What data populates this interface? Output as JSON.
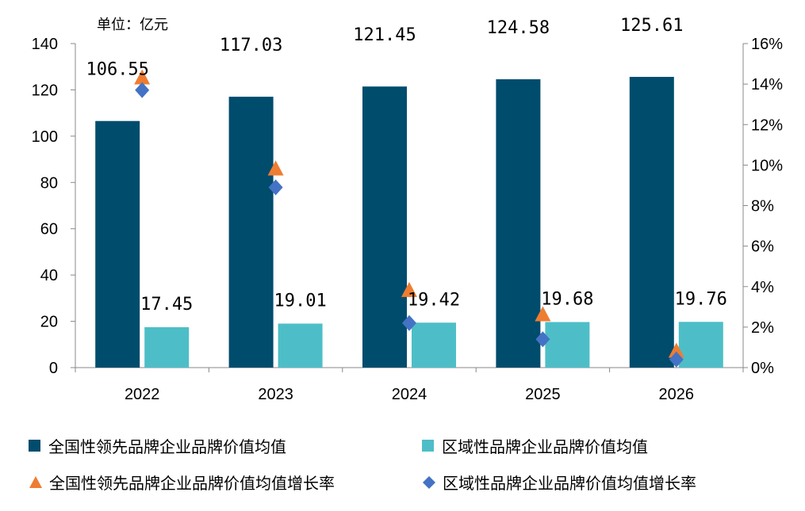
{
  "chart_data": {
    "type": "bar",
    "unit_label": "单位：亿元",
    "categories": [
      "2022",
      "2023",
      "2024",
      "2025",
      "2026"
    ],
    "series": [
      {
        "name": "全国性领先品牌企业品牌价值均值",
        "axis": "left",
        "kind": "bar",
        "color": "#004c6d",
        "values": [
          106.55,
          117.03,
          121.45,
          124.58,
          125.61
        ],
        "labels": [
          "106.55",
          "117.03",
          "121.45",
          "124.58",
          "125.61"
        ]
      },
      {
        "name": "区域性品牌企业品牌价值均值",
        "axis": "left",
        "kind": "bar",
        "color": "#4dbec7",
        "values": [
          17.45,
          19.01,
          19.42,
          19.68,
          19.76
        ],
        "labels": [
          "17.45",
          "19.01",
          "19.42",
          "19.68",
          "19.76"
        ]
      },
      {
        "name": "全国性领先品牌企业品牌价值均值增长率",
        "axis": "right",
        "kind": "marker-triangle",
        "color": "#ee7d31",
        "values": [
          14.3,
          9.8,
          3.8,
          2.6,
          0.8
        ]
      },
      {
        "name": "区域性品牌企业品牌价值均值增长率",
        "axis": "right",
        "kind": "marker-diamond",
        "color": "#4472c4",
        "values": [
          13.7,
          8.9,
          2.2,
          1.4,
          0.4
        ]
      }
    ],
    "y_left": {
      "min": 0,
      "max": 140,
      "ticks": [
        "0",
        "20",
        "40",
        "60",
        "80",
        "100",
        "120",
        "140"
      ]
    },
    "y_right": {
      "min": 0,
      "max": 16,
      "ticks": [
        "0%",
        "2%",
        "4%",
        "6%",
        "8%",
        "10%",
        "12%",
        "14%",
        "16%"
      ]
    },
    "grid": false,
    "legend_position": "bottom"
  }
}
